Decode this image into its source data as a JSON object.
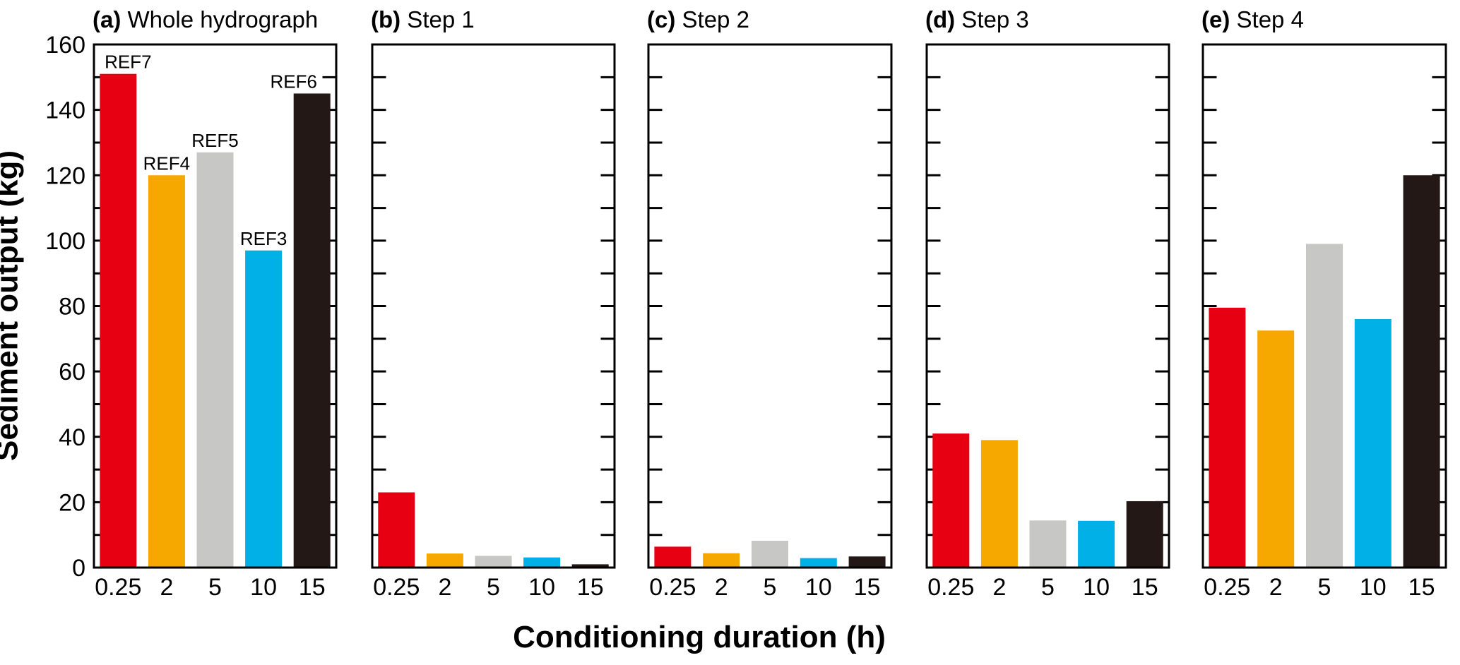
{
  "axes": {
    "y_label": "Sediment output (kg)",
    "x_label": "Conditioning duration (h)"
  },
  "colors": {
    "bar_red": "#e60012",
    "bar_orange": "#f6a800",
    "bar_gray": "#c7c7c6",
    "bar_cyan": "#00b0e6",
    "bar_black": "#231815",
    "axis": "#000000"
  },
  "chart_data": [
    {
      "type": "bar",
      "panel": "(a)",
      "title": "Whole hydrograph",
      "categories": [
        "0.25",
        "2",
        "5",
        "10",
        "15"
      ],
      "values": [
        151,
        120,
        127,
        97,
        145
      ],
      "bar_labels": [
        "REF7",
        "REF4",
        "REF5",
        "REF3",
        "REF6"
      ],
      "bar_colors": [
        "#e60012",
        "#f6a800",
        "#c7c7c6",
        "#00b0e6",
        "#231815"
      ],
      "ylim": [
        0,
        160
      ],
      "y_tick_labels": [
        0,
        20,
        40,
        60,
        80,
        100,
        120,
        140,
        160
      ],
      "minor_tick_step": 10,
      "show_y_tick_labels": true,
      "grid": false,
      "legend": "none"
    },
    {
      "type": "bar",
      "panel": "(b)",
      "title": "Step 1",
      "categories": [
        "0.25",
        "2",
        "5",
        "10",
        "15"
      ],
      "values": [
        23,
        4.3,
        3.6,
        3.1,
        1
      ],
      "bar_labels": [],
      "bar_colors": [
        "#e60012",
        "#f6a800",
        "#c7c7c6",
        "#00b0e6",
        "#231815"
      ],
      "ylim": [
        0,
        160
      ],
      "y_tick_labels": [],
      "minor_tick_step": 10,
      "show_y_tick_labels": false,
      "grid": false,
      "legend": "none"
    },
    {
      "type": "bar",
      "panel": "(c)",
      "title": "Step 2",
      "categories": [
        "0.25",
        "2",
        "5",
        "10",
        "15"
      ],
      "values": [
        6.4,
        4.4,
        8.2,
        2.9,
        3.4
      ],
      "bar_labels": [],
      "bar_colors": [
        "#e60012",
        "#f6a800",
        "#c7c7c6",
        "#00b0e6",
        "#231815"
      ],
      "ylim": [
        0,
        160
      ],
      "y_tick_labels": [],
      "minor_tick_step": 10,
      "show_y_tick_labels": false,
      "grid": false,
      "legend": "none"
    },
    {
      "type": "bar",
      "panel": "(d)",
      "title": "Step 3",
      "categories": [
        "0.25",
        "2",
        "5",
        "10",
        "15"
      ],
      "values": [
        41,
        39,
        14.4,
        14.3,
        20.3
      ],
      "bar_labels": [],
      "bar_colors": [
        "#e60012",
        "#f6a800",
        "#c7c7c6",
        "#00b0e6",
        "#231815"
      ],
      "ylim": [
        0,
        160
      ],
      "y_tick_labels": [],
      "minor_tick_step": 10,
      "show_y_tick_labels": false,
      "grid": false,
      "legend": "none"
    },
    {
      "type": "bar",
      "panel": "(e)",
      "title": "Step 4",
      "categories": [
        "0.25",
        "2",
        "5",
        "10",
        "15"
      ],
      "values": [
        79.5,
        72.5,
        99,
        76,
        120
      ],
      "bar_labels": [],
      "bar_colors": [
        "#e60012",
        "#f6a800",
        "#c7c7c6",
        "#00b0e6",
        "#231815"
      ],
      "ylim": [
        0,
        160
      ],
      "y_tick_labels": [],
      "minor_tick_step": 10,
      "show_y_tick_labels": false,
      "grid": false,
      "legend": "none"
    }
  ]
}
